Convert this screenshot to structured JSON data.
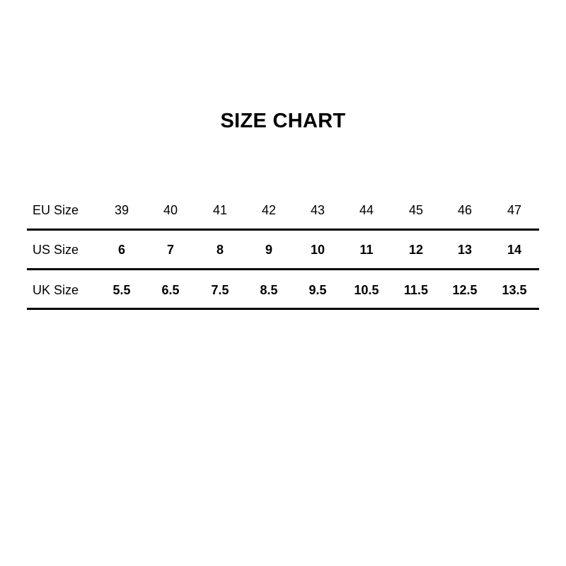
{
  "title": "SIZE CHART",
  "rows": [
    {
      "label": "EU Size",
      "values": [
        "39",
        "40",
        "41",
        "42",
        "43",
        "44",
        "45",
        "46",
        "47"
      ]
    },
    {
      "label": "US Size",
      "values": [
        "6",
        "7",
        "8",
        "9",
        "10",
        "11",
        "12",
        "13",
        "14"
      ]
    },
    {
      "label": "UK Size",
      "values": [
        "5.5",
        "6.5",
        "7.5",
        "8.5",
        "9.5",
        "10.5",
        "11.5",
        "12.5",
        "13.5"
      ]
    }
  ]
}
